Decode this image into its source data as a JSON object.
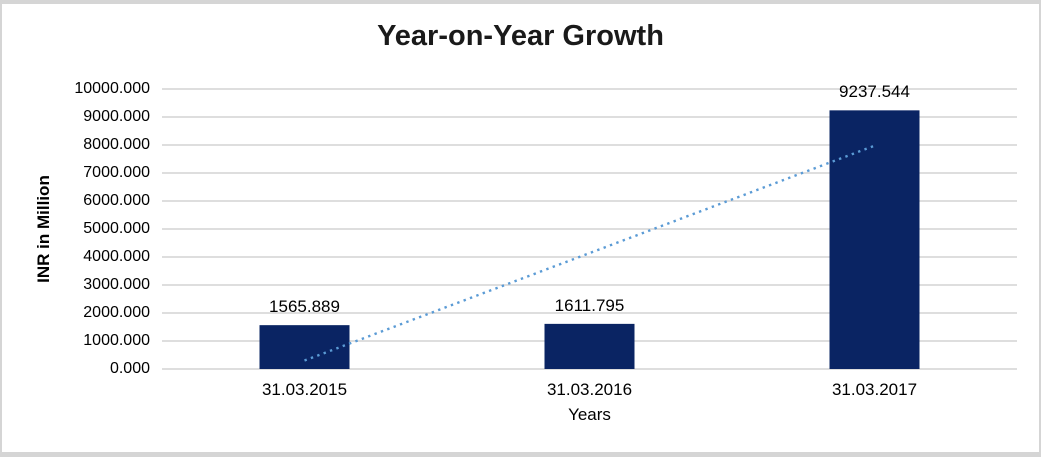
{
  "chart_data": {
    "type": "bar",
    "title": "Year-on-Year Growth",
    "xlabel": "Years",
    "ylabel": "INR in Million",
    "categories": [
      "31.03.2015",
      "31.03.2016",
      "31.03.2017"
    ],
    "values": [
      1565.889,
      1611.795,
      9237.544
    ],
    "data_labels": [
      "1565.889",
      "1611.795",
      "9237.544"
    ],
    "y_tick_labels": [
      "0.000",
      "1000.000",
      "2000.000",
      "3000.000",
      "4000.000",
      "5000.000",
      "6000.000",
      "7000.000",
      "8000.000",
      "9000.000",
      "10000.000"
    ],
    "ylim": [
      0,
      10000
    ],
    "grid": true,
    "legend": "none",
    "trendline": {
      "type": "linear",
      "style": "dotted",
      "start_value": 302.6,
      "end_value": 7974.2
    },
    "colors": {
      "bar": "#0A2463",
      "trendline": "#5B9BD5",
      "gridline": "#D9D9D9",
      "text": "#000000",
      "frame": "#D5D5D5",
      "background": "#FFFFFF"
    }
  }
}
